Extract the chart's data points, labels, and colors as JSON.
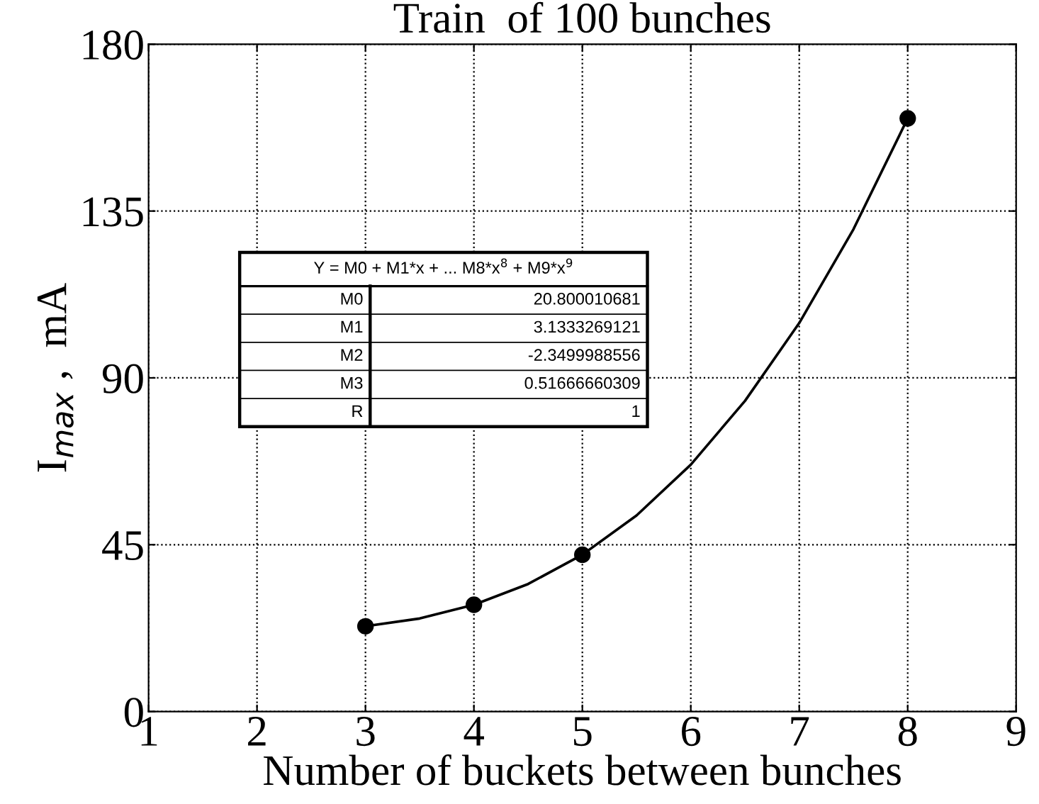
{
  "chart_data": {
    "type": "scatter",
    "title": "Train  of 100 bunches",
    "xlabel": "Number of buckets between bunches",
    "ylabel": "I$_{max}$ ,  mA",
    "xlim": [
      1,
      9
    ],
    "xticks": [
      1,
      2,
      3,
      4,
      5,
      6,
      7,
      8,
      9
    ],
    "ylim": [
      0,
      180
    ],
    "yticks": [
      0,
      45,
      90,
      135,
      180
    ],
    "grid": true,
    "marker": "circle",
    "series": [
      {
        "color": "#000000",
        "x": [
          3,
          4,
          5,
          8
        ],
        "values": [
          23,
          28.8,
          42.3,
          160
        ]
      },
      {
        "type": "line",
        "color": "#000000",
        "marker": "none",
        "line_style": "solid",
        "x": [
          3,
          3.5,
          4,
          4.5,
          5,
          5.5,
          6,
          6.5,
          7,
          7.5,
          8
        ],
        "values": [
          23,
          25.1,
          28.8,
          34.4,
          42.3,
          52.9,
          66.6,
          83.8,
          104.8,
          130.1,
          160
        ]
      }
    ],
    "annotations": [
      "Y = M0 + M1*x + ... M8*x$^{8}$ + M9*x$^{9}$",
      "M0",
      "20.800010681",
      "M1",
      "3.1333269121",
      "M2",
      "-2.3499988556",
      "M3",
      "0.51666660309",
      "R",
      "1"
    ]
  }
}
